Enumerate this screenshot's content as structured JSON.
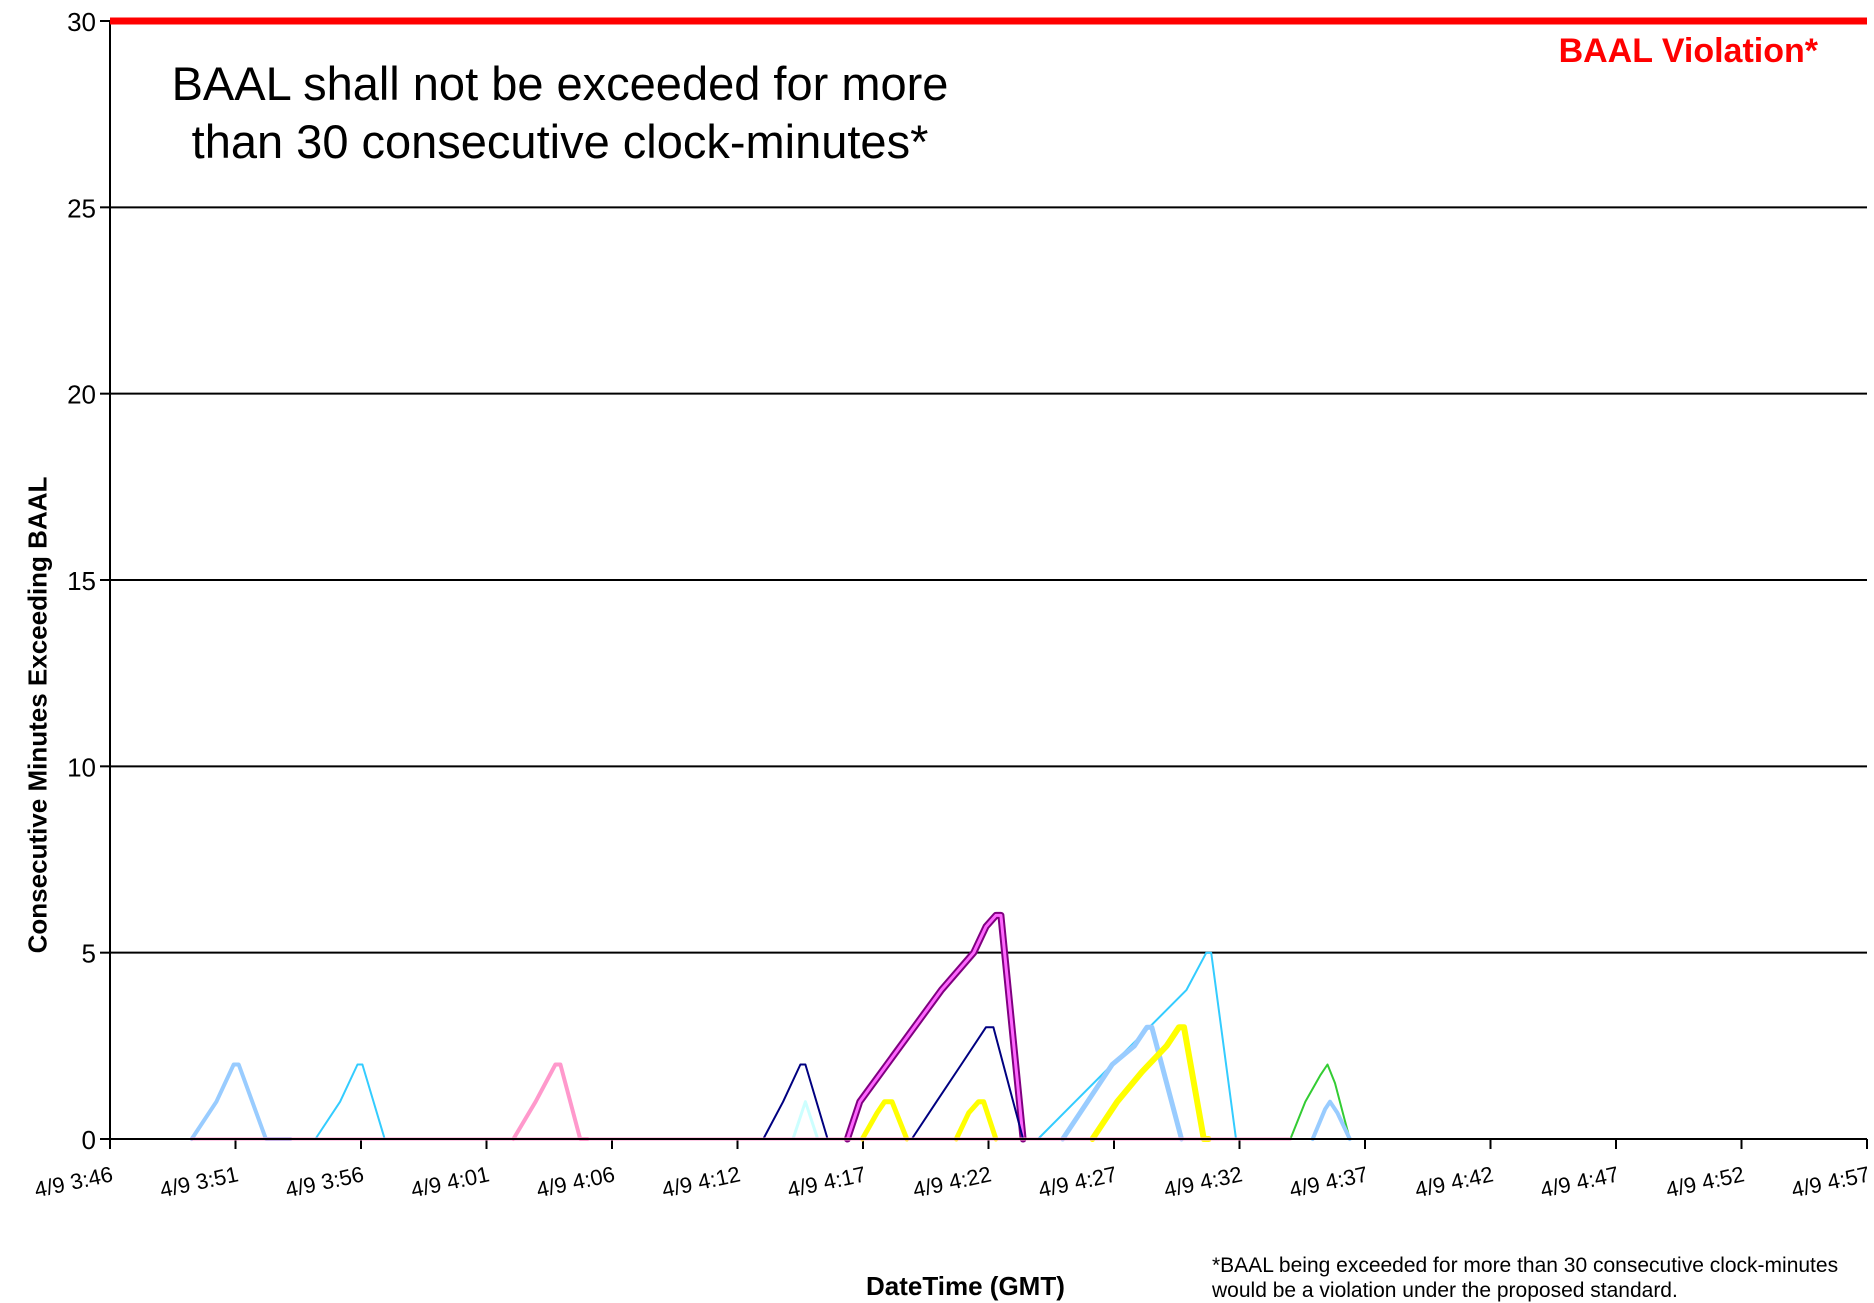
{
  "chart_data": {
    "type": "line",
    "title": "",
    "xlabel": "DateTime (GMT)",
    "ylabel": "Consecutive Minutes Exceeding BAAL",
    "ylim": [
      0,
      30
    ],
    "yticks": [
      0,
      5,
      10,
      15,
      20,
      25,
      30
    ],
    "xlim_minutes": [
      0,
      71
    ],
    "x_ticks": [
      "4/9 3:46",
      "4/9 3:51",
      "4/9 3:56",
      "4/9 4:01",
      "4/9 4:06",
      "4/9 4:12",
      "4/9 4:17",
      "4/9 4:22",
      "4/9 4:27",
      "4/9 4:32",
      "4/9 4:37",
      "4/9 4:42",
      "4/9 4:47",
      "4/9 4:52",
      "4/9 4:57"
    ],
    "grid": "horizontal",
    "threshold": {
      "value": 30,
      "label": "BAAL Violation*",
      "color": "#ff0000"
    },
    "annotation": "BAAL shall not be exceeded for more\nthan 30 consecutive clock-minutes*",
    "footnote": "*BAAL being exceeded for more than 30 consecutive clock-minutes would be a violation under the proposed standard.",
    "series": [
      {
        "color": "#99ccff",
        "width": 4,
        "points": [
          [
            3.3,
            0
          ],
          [
            4.3,
            1
          ],
          [
            5,
            2
          ],
          [
            5.2,
            2
          ],
          [
            6.3,
            0
          ],
          [
            7.3,
            0
          ]
        ]
      },
      {
        "color": "#33ccff",
        "width": 2,
        "points": [
          [
            8.3,
            0
          ],
          [
            9.3,
            1
          ],
          [
            10,
            2
          ],
          [
            10.2,
            2
          ],
          [
            11.1,
            0
          ],
          [
            11.5,
            0
          ]
        ]
      },
      {
        "color": "#ff99cc",
        "width": 4,
        "points": [
          [
            16.3,
            0
          ],
          [
            17.2,
            1
          ],
          [
            18,
            2
          ],
          [
            18.2,
            2
          ],
          [
            19,
            0
          ],
          [
            19.3,
            0
          ]
        ]
      },
      {
        "color": "#000080",
        "width": 2,
        "points": [
          [
            26.4,
            0
          ],
          [
            27.2,
            1
          ],
          [
            27.9,
            2
          ],
          [
            28.1,
            2
          ],
          [
            29,
            0
          ]
        ]
      },
      {
        "color": "#ccffff",
        "width": 3,
        "points": [
          [
            27.6,
            0
          ],
          [
            28.1,
            1
          ],
          [
            28.6,
            0
          ]
        ]
      },
      {
        "color": "#800080",
        "width": 7,
        "points": [
          [
            29.8,
            0
          ],
          [
            30.3,
            1
          ],
          [
            33.6,
            4
          ],
          [
            34.9,
            5
          ],
          [
            35.4,
            5.7
          ],
          [
            35.8,
            6
          ],
          [
            36.0,
            6
          ],
          [
            36.9,
            0
          ]
        ]
      },
      {
        "color": "#ff66ff",
        "width": 3,
        "points": [
          [
            29.8,
            0
          ],
          [
            30.3,
            1
          ],
          [
            33.6,
            4
          ],
          [
            34.9,
            5
          ],
          [
            35.4,
            5.7
          ],
          [
            35.8,
            6
          ],
          [
            36.0,
            6
          ],
          [
            36.9,
            0
          ]
        ]
      },
      {
        "color": "#ffff00",
        "width": 5,
        "points": [
          [
            30.4,
            0
          ],
          [
            31,
            0.7
          ],
          [
            31.3,
            1
          ],
          [
            31.6,
            1
          ],
          [
            32.2,
            0
          ]
        ]
      },
      {
        "color": "#000080",
        "width": 2,
        "points": [
          [
            32.4,
            0
          ],
          [
            33.4,
            1
          ],
          [
            34.4,
            2
          ],
          [
            35.4,
            3
          ],
          [
            35.7,
            3
          ],
          [
            36.9,
            0
          ]
        ]
      },
      {
        "color": "#ffff00",
        "width": 5,
        "points": [
          [
            34.2,
            0
          ],
          [
            34.7,
            0.7
          ],
          [
            35.1,
            1
          ],
          [
            35.3,
            1
          ],
          [
            35.8,
            0
          ]
        ]
      },
      {
        "color": "#33ccff",
        "width": 2,
        "points": [
          [
            37.5,
            0
          ],
          [
            39,
            1
          ],
          [
            40.5,
            2
          ],
          [
            42,
            3
          ],
          [
            43.5,
            4
          ],
          [
            44.3,
            5
          ],
          [
            44.5,
            5
          ],
          [
            45.5,
            0
          ],
          [
            46.1,
            0
          ]
        ]
      },
      {
        "color": "#99ccff",
        "width": 5,
        "points": [
          [
            38.5,
            0
          ],
          [
            39.5,
            1
          ],
          [
            40.5,
            2
          ],
          [
            41.4,
            2.5
          ],
          [
            41.9,
            3
          ],
          [
            42.1,
            3
          ],
          [
            43.3,
            0
          ]
        ]
      },
      {
        "color": "#ffff00",
        "width": 6,
        "points": [
          [
            39.7,
            0
          ],
          [
            40.7,
            1
          ],
          [
            41.7,
            1.8
          ],
          [
            42.7,
            2.5
          ],
          [
            43.2,
            3
          ],
          [
            43.4,
            3
          ],
          [
            44.2,
            0
          ],
          [
            44.4,
            0
          ]
        ]
      },
      {
        "color": "#33cc33",
        "width": 2,
        "points": [
          [
            47.7,
            0
          ],
          [
            48.3,
            1
          ],
          [
            48.9,
            1.7
          ],
          [
            49.2,
            2
          ],
          [
            49.5,
            1.5
          ],
          [
            49.9,
            0.5
          ],
          [
            50.1,
            0
          ]
        ]
      },
      {
        "color": "#99ccff",
        "width": 4,
        "points": [
          [
            48.6,
            0
          ],
          [
            49.1,
            0.8
          ],
          [
            49.3,
            1
          ],
          [
            49.6,
            0.7
          ],
          [
            50.1,
            0
          ]
        ]
      },
      {
        "color": "#ff99cc",
        "width": 3,
        "points": [
          [
            3.3,
            0
          ],
          [
            47.7,
            0
          ]
        ]
      },
      {
        "color": "#ccccff",
        "width": 2,
        "points": [
          [
            50.1,
            0
          ],
          [
            62,
            0
          ]
        ]
      }
    ]
  }
}
